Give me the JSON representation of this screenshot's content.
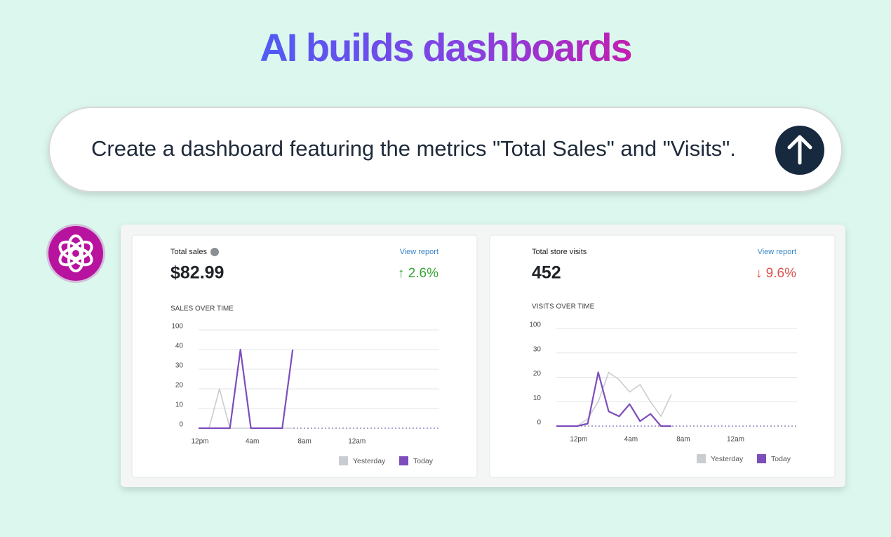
{
  "header": {
    "title": "AI builds dashboards"
  },
  "prompt": {
    "text": "Create a dashboard featuring the metrics \"Total Sales\" and \"Visits\"."
  },
  "cards": [
    {
      "label": "Total sales",
      "link": "View report",
      "value": "$82.99",
      "change": "↑ 2.6%",
      "change_color": "#3aa435"
    },
    {
      "label": "Total store visits",
      "link": "View report",
      "value": "452",
      "change": "↓ 9.6%",
      "change_color": "#d9534f"
    }
  ],
  "chart_data": [
    {
      "type": "line",
      "title": "SALES OVER TIME",
      "categories": [
        "12pm",
        null,
        null,
        null,
        null,
        "4am",
        null,
        null,
        null,
        null,
        "8am",
        null,
        null,
        null,
        null,
        "12am",
        null,
        null,
        null,
        null,
        null,
        null,
        null,
        null
      ],
      "ylim": [
        0,
        100
      ],
      "yticks": [
        0,
        10,
        20,
        30,
        40,
        100
      ],
      "grid": true,
      "legend": "bottom-right",
      "series": [
        {
          "name": "Yesterday",
          "color": "#c9cdd1",
          "values": [
            0,
            0,
            20,
            0,
            0,
            0,
            0,
            0,
            0,
            0,
            null,
            null,
            null,
            null,
            null,
            null,
            null,
            null,
            null,
            null,
            null,
            null,
            null,
            null
          ]
        },
        {
          "name": "Today",
          "color": "#7c4dbb",
          "values": [
            0,
            0,
            0,
            0,
            40,
            0,
            0,
            0,
            0,
            40,
            null,
            null,
            null,
            null,
            null,
            null,
            null,
            null,
            null,
            null,
            null,
            null,
            null,
            null
          ]
        }
      ]
    },
    {
      "type": "line",
      "title": "VISITS OVER TIME",
      "categories": [
        null,
        null,
        "12pm",
        null,
        null,
        null,
        null,
        "4am",
        null,
        null,
        null,
        null,
        "8am",
        null,
        null,
        null,
        null,
        "12am",
        null,
        null,
        null,
        null,
        null,
        null
      ],
      "ylim": [
        0,
        100
      ],
      "yticks": [
        0,
        10,
        20,
        30,
        100
      ],
      "grid": true,
      "legend": "bottom-right",
      "series": [
        {
          "name": "Yesterday",
          "color": "#c9cdd1",
          "values": [
            null,
            null,
            0,
            3,
            10,
            22,
            19,
            14,
            17,
            10,
            4,
            13,
            null,
            null,
            null,
            null,
            null,
            null,
            null,
            null,
            null,
            null,
            null,
            null
          ]
        },
        {
          "name": "Today",
          "color": "#7c4dbb",
          "values": [
            0,
            0,
            0,
            1,
            22,
            6,
            4,
            9,
            2,
            5,
            0,
            0,
            null,
            null,
            null,
            null,
            null,
            null,
            null,
            null,
            null,
            null,
            null,
            null
          ]
        }
      ]
    }
  ]
}
